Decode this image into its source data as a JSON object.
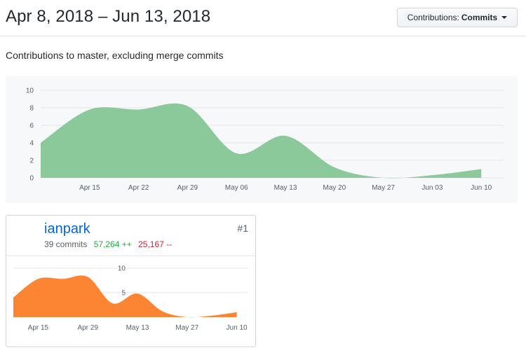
{
  "header": {
    "title": "Apr 8, 2018 – Jun 13, 2018",
    "contributions_label": "Contributions:",
    "contributions_value": "Commits"
  },
  "subtitle": "Contributions to master, excluding merge commits",
  "colors": {
    "main_area": "#8cc99a",
    "contributor_area": "#fb8532",
    "username": "#0366d6",
    "additions": "#28a745",
    "deletions": "#cb2431"
  },
  "contributor": {
    "rank": "#1",
    "username": "ianpark",
    "commits": "39 commits",
    "additions": "57,264 ++",
    "deletions": "25,167 --",
    "avatar_icon": "mountain-landscape-avatar"
  },
  "chart_data": [
    {
      "type": "area",
      "x": [
        "Apr 08",
        "Apr 15",
        "Apr 22",
        "Apr 29",
        "May 06",
        "May 13",
        "May 20",
        "May 27",
        "Jun 03",
        "Jun 10"
      ],
      "series": [
        {
          "values": [
            4,
            7.8,
            7.8,
            8.2,
            2.8,
            4.8,
            1.2,
            0,
            0.3,
            1
          ]
        }
      ],
      "x_ticks": [
        "Apr 15",
        "Apr 22",
        "Apr 29",
        "May 06",
        "May 13",
        "May 20",
        "May 27",
        "Jun 03",
        "Jun 10"
      ],
      "y_ticks": [
        "0",
        "2",
        "4",
        "6",
        "8",
        "10"
      ],
      "ylim": [
        0,
        10
      ],
      "grid": true
    },
    {
      "type": "area",
      "x": [
        "Apr 08",
        "Apr 15",
        "Apr 22",
        "Apr 29",
        "May 06",
        "May 13",
        "May 20",
        "May 27",
        "Jun 03",
        "Jun 10"
      ],
      "series": [
        {
          "values": [
            4,
            7.8,
            7.8,
            8.2,
            2.8,
            4.8,
            1.2,
            0,
            0.3,
            1
          ]
        }
      ],
      "x_ticks": [
        "Apr 15",
        "Apr 29",
        "May 13",
        "May 27",
        "Jun 10"
      ],
      "y_ticks": [
        "5",
        "10"
      ],
      "ylim": [
        0,
        10
      ],
      "grid": true
    }
  ]
}
